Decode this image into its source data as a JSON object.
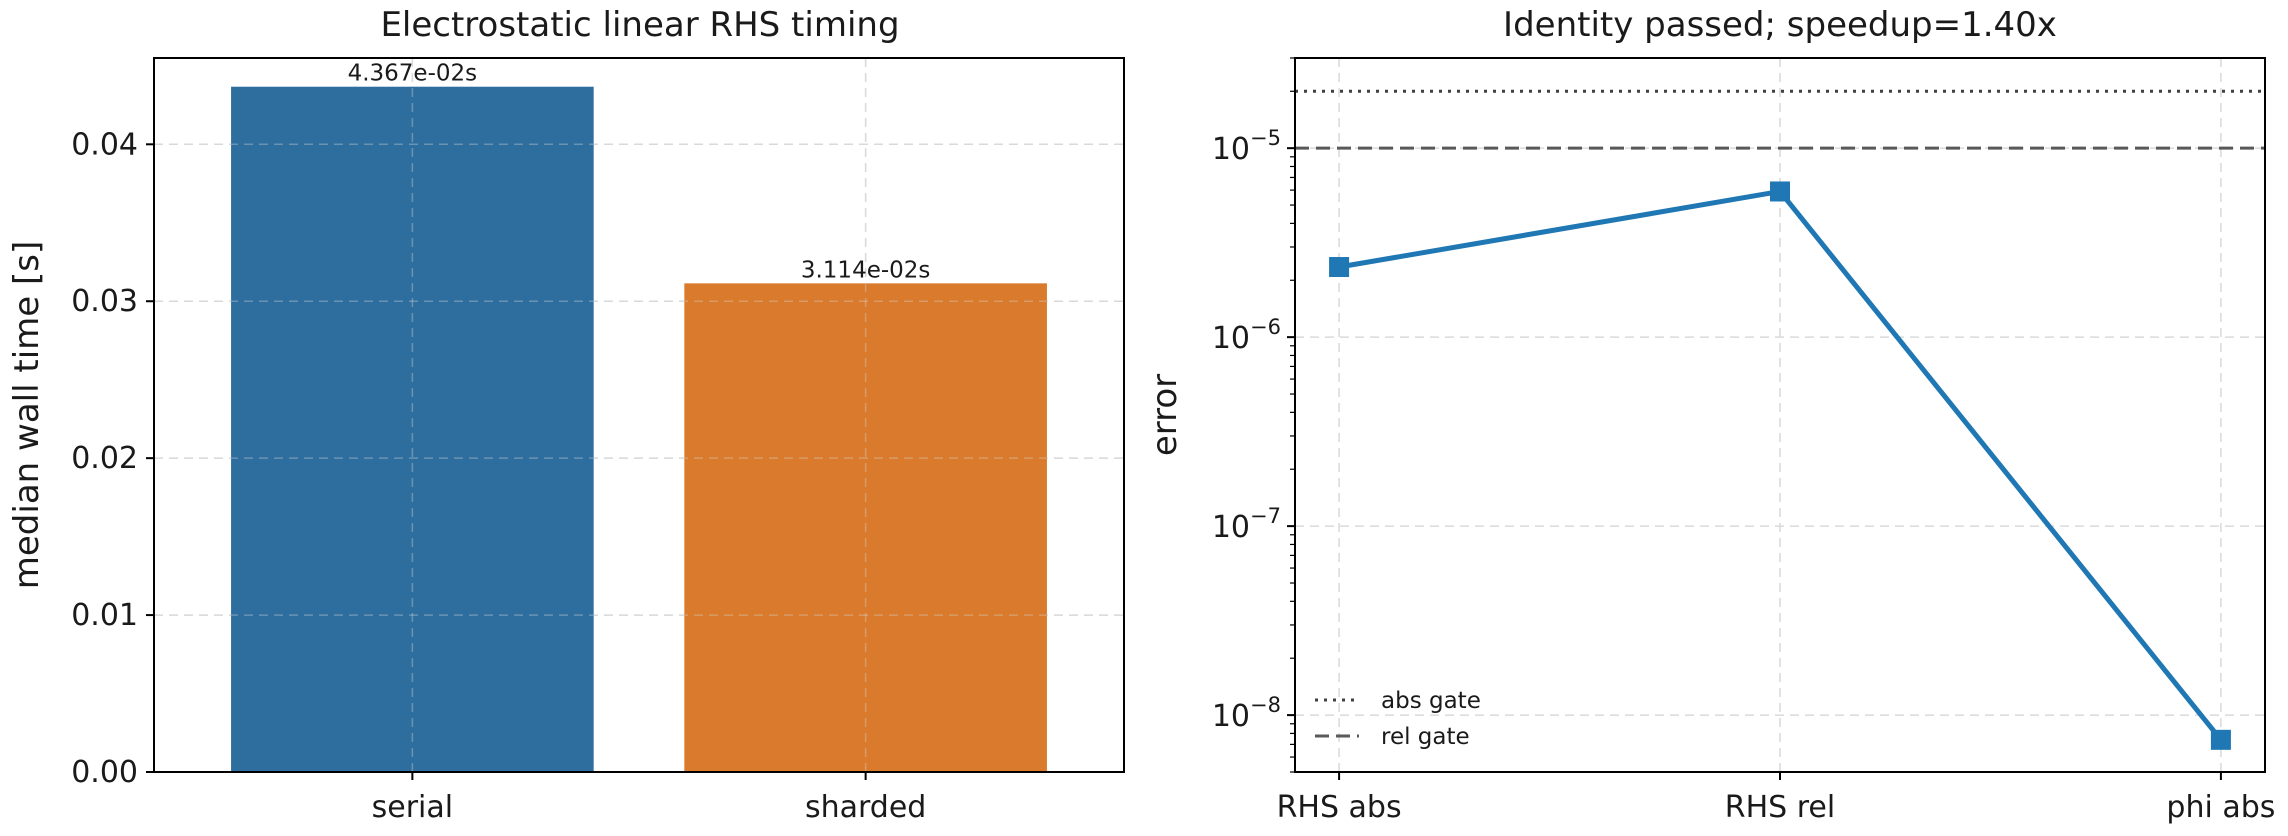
{
  "chart_data": [
    {
      "type": "bar",
      "title": "Electrostatic linear RHS timing",
      "xlabel": "",
      "ylabel": "median wall time [s]",
      "categories": [
        "serial",
        "sharded"
      ],
      "values": [
        0.04367,
        0.03114
      ],
      "value_labels": [
        "4.367e-02s",
        "3.114e-02s"
      ],
      "colors": [
        "#2e6e9e",
        "#d97a2c"
      ],
      "ylim": [
        0,
        0.0455
      ],
      "yticks": [
        0.0,
        0.01,
        0.02,
        0.03,
        0.04
      ],
      "ytick_labels": [
        "0.00",
        "0.01",
        "0.02",
        "0.03",
        "0.04"
      ],
      "grid": true
    },
    {
      "type": "line",
      "title": "Identity passed; speedup=1.40x",
      "xlabel": "",
      "ylabel": "error",
      "yscale": "log",
      "categories": [
        "RHS abs",
        "RHS rel",
        "phi abs"
      ],
      "series": [
        {
          "values": [
            2.35e-06,
            5.9e-06,
            7.4e-09
          ],
          "color": "#1f77b4",
          "marker": "square"
        }
      ],
      "reference_lines": [
        {
          "name": "abs gate",
          "value": 2e-05,
          "style": "dotted",
          "color": "#404040"
        },
        {
          "name": "rel gate",
          "value": 1e-05,
          "style": "dashed",
          "color": "#595959"
        }
      ],
      "ylim": [
        5e-09,
        3e-05
      ],
      "yticks_exponents": [
        -8,
        -7,
        -6,
        -5
      ],
      "legend_placement": "lower-left",
      "grid": true
    }
  ]
}
